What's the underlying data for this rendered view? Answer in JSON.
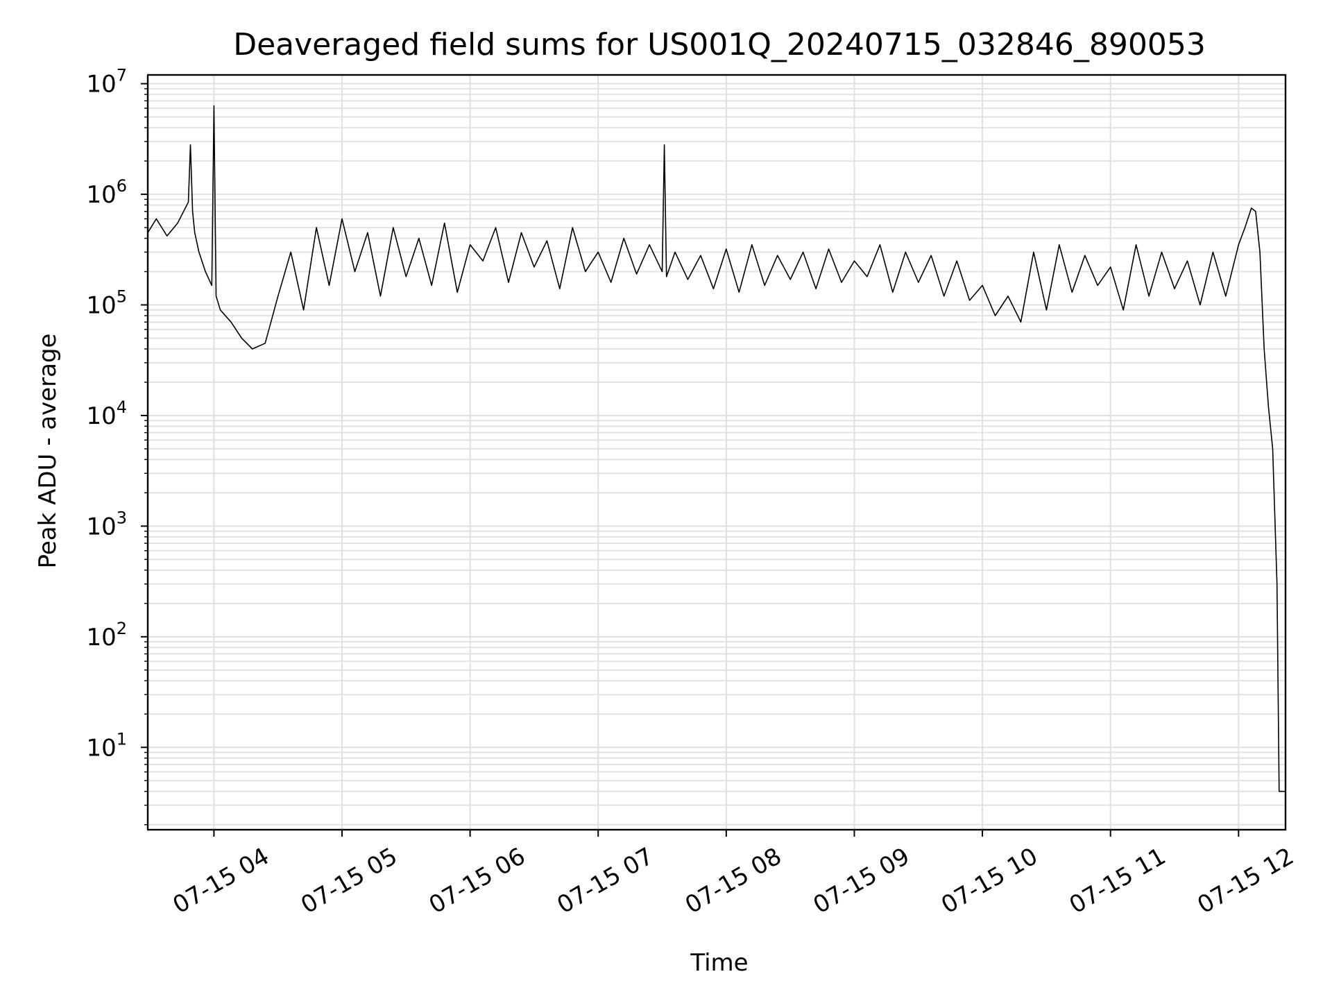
{
  "chart_data": {
    "type": "line",
    "title": "Deaveraged field sums for US001Q_20240715_032846_890053",
    "xlabel": "Time",
    "ylabel": "Peak ADU - average",
    "yscale": "log",
    "ylim": [
      1.8,
      12000000
    ],
    "xlim": [
      "2024-07-15 03:29",
      "2024-07-15 12:22"
    ],
    "grid": true,
    "line_color": "#000000",
    "x_ticks": [
      "2024-07-15 04:00",
      "2024-07-15 05:00",
      "2024-07-15 06:00",
      "2024-07-15 07:00",
      "2024-07-15 08:00",
      "2024-07-15 09:00",
      "2024-07-15 10:00",
      "2024-07-15 11:00",
      "2024-07-15 12:00"
    ],
    "x_tick_labels": [
      "07-15 04",
      "07-15 05",
      "07-15 06",
      "07-15 07",
      "07-15 08",
      "07-15 09",
      "07-15 10",
      "07-15 11",
      "07-15 12"
    ],
    "y_ticks": [
      10,
      100,
      1000,
      10000,
      100000,
      1000000,
      10000000
    ],
    "y_tick_labels": [
      {
        "base": "10",
        "exp": "1"
      },
      {
        "base": "10",
        "exp": "2"
      },
      {
        "base": "10",
        "exp": "3"
      },
      {
        "base": "10",
        "exp": "4"
      },
      {
        "base": "10",
        "exp": "5"
      },
      {
        "base": "10",
        "exp": "6"
      },
      {
        "base": "10",
        "exp": "7"
      }
    ],
    "series": [
      {
        "x": [
          "2024-07-15 03:29",
          "2024-07-15 03:33",
          "2024-07-15 03:38",
          "2024-07-15 03:43",
          "2024-07-15 03:48",
          "2024-07-15 03:49",
          "2024-07-15 03:50",
          "2024-07-15 03:51",
          "2024-07-15 03:53",
          "2024-07-15 03:56",
          "2024-07-15 03:59",
          "2024-07-15 04:00",
          "2024-07-15 04:01",
          "2024-07-15 04:03",
          "2024-07-15 04:08",
          "2024-07-15 04:13",
          "2024-07-15 04:18",
          "2024-07-15 04:24",
          "2024-07-15 04:30",
          "2024-07-15 04:36",
          "2024-07-15 04:42",
          "2024-07-15 04:48",
          "2024-07-15 04:54",
          "2024-07-15 05:00",
          "2024-07-15 05:06",
          "2024-07-15 05:12",
          "2024-07-15 05:18",
          "2024-07-15 05:24",
          "2024-07-15 05:30",
          "2024-07-15 05:36",
          "2024-07-15 05:42",
          "2024-07-15 05:48",
          "2024-07-15 05:54",
          "2024-07-15 06:00",
          "2024-07-15 06:06",
          "2024-07-15 06:12",
          "2024-07-15 06:18",
          "2024-07-15 06:24",
          "2024-07-15 06:30",
          "2024-07-15 06:36",
          "2024-07-15 06:42",
          "2024-07-15 06:48",
          "2024-07-15 06:54",
          "2024-07-15 07:00",
          "2024-07-15 07:06",
          "2024-07-15 07:12",
          "2024-07-15 07:18",
          "2024-07-15 07:24",
          "2024-07-15 07:30",
          "2024-07-15 07:31",
          "2024-07-15 07:32",
          "2024-07-15 07:36",
          "2024-07-15 07:42",
          "2024-07-15 07:48",
          "2024-07-15 07:54",
          "2024-07-15 08:00",
          "2024-07-15 08:06",
          "2024-07-15 08:12",
          "2024-07-15 08:18",
          "2024-07-15 08:24",
          "2024-07-15 08:30",
          "2024-07-15 08:36",
          "2024-07-15 08:42",
          "2024-07-15 08:48",
          "2024-07-15 08:54",
          "2024-07-15 09:00",
          "2024-07-15 09:06",
          "2024-07-15 09:12",
          "2024-07-15 09:18",
          "2024-07-15 09:24",
          "2024-07-15 09:30",
          "2024-07-15 09:36",
          "2024-07-15 09:42",
          "2024-07-15 09:48",
          "2024-07-15 09:54",
          "2024-07-15 10:00",
          "2024-07-15 10:06",
          "2024-07-15 10:12",
          "2024-07-15 10:18",
          "2024-07-15 10:24",
          "2024-07-15 10:30",
          "2024-07-15 10:36",
          "2024-07-15 10:42",
          "2024-07-15 10:48",
          "2024-07-15 10:54",
          "2024-07-15 11:00",
          "2024-07-15 11:06",
          "2024-07-15 11:12",
          "2024-07-15 11:18",
          "2024-07-15 11:24",
          "2024-07-15 11:30",
          "2024-07-15 11:36",
          "2024-07-15 11:42",
          "2024-07-15 11:48",
          "2024-07-15 11:54",
          "2024-07-15 12:00",
          "2024-07-15 12:03",
          "2024-07-15 12:06",
          "2024-07-15 12:08",
          "2024-07-15 12:10",
          "2024-07-15 12:12",
          "2024-07-15 12:14",
          "2024-07-15 12:16",
          "2024-07-15 12:18",
          "2024-07-15 12:19",
          "2024-07-15 12:20",
          "2024-07-15 12:21",
          "2024-07-15 12:22"
        ],
        "y": [
          450000,
          600000,
          420000,
          550000,
          850000,
          2800000,
          700000,
          450000,
          300000,
          200000,
          150000,
          6300000,
          120000,
          90000,
          70000,
          50000,
          40000,
          45000,
          120000,
          300000,
          90000,
          500000,
          150000,
          600000,
          200000,
          450000,
          120000,
          500000,
          180000,
          400000,
          150000,
          550000,
          130000,
          350000,
          250000,
          500000,
          160000,
          450000,
          220000,
          380000,
          140000,
          500000,
          200000,
          300000,
          160000,
          400000,
          190000,
          350000,
          200000,
          2800000,
          180000,
          300000,
          170000,
          280000,
          140000,
          320000,
          130000,
          350000,
          150000,
          280000,
          170000,
          300000,
          140000,
          320000,
          160000,
          250000,
          180000,
          350000,
          130000,
          300000,
          160000,
          280000,
          120000,
          250000,
          110000,
          150000,
          80000,
          120000,
          70000,
          300000,
          90000,
          350000,
          130000,
          280000,
          150000,
          220000,
          90000,
          350000,
          120000,
          300000,
          140000,
          250000,
          100000,
          300000,
          120000,
          350000,
          500000,
          750000,
          700000,
          300000,
          40000,
          12000,
          5000,
          300,
          4,
          4,
          4,
          4
        ]
      }
    ]
  }
}
